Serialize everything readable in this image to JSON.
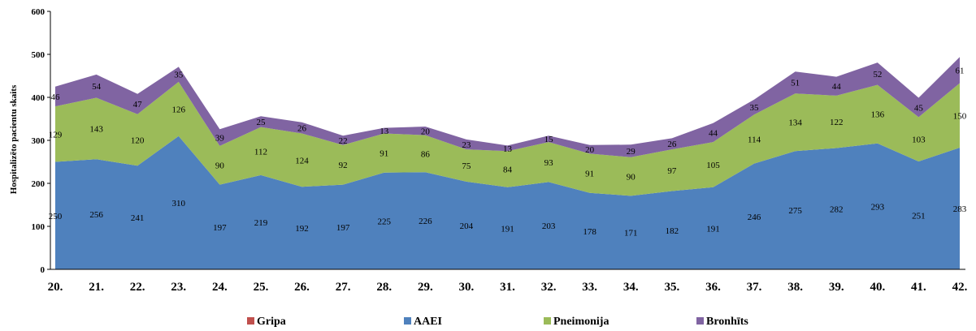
{
  "chart_data": {
    "type": "area",
    "stacked": true,
    "title": "",
    "xlabel": "",
    "ylabel": "Hospitalizēto pacientu skaits",
    "ylim": [
      0,
      600
    ],
    "yticks": [
      0,
      100,
      200,
      300,
      400,
      500,
      600
    ],
    "grid": false,
    "legend_position": "bottom",
    "categories": [
      "20.",
      "21.",
      "22.",
      "23.",
      "24.",
      "25.",
      "26.",
      "27.",
      "28.",
      "29.",
      "30.",
      "31.",
      "32.",
      "33.",
      "34.",
      "35.",
      "36.",
      "37.",
      "38.",
      "39.",
      "40.",
      "41.",
      "42."
    ],
    "series": [
      {
        "name": "Gripa",
        "color": "#c0504d",
        "values": [
          0,
          0,
          0,
          0,
          0,
          0,
          0,
          0,
          0,
          0,
          0,
          0,
          0,
          0,
          0,
          0,
          0,
          0,
          0,
          0,
          0,
          0,
          0
        ],
        "show_labels": false
      },
      {
        "name": "AAEI",
        "color": "#4f81bd",
        "values": [
          250,
          256,
          241,
          310,
          197,
          219,
          192,
          197,
          225,
          226,
          204,
          191,
          203,
          178,
          171,
          182,
          191,
          246,
          275,
          282,
          293,
          251,
          283
        ],
        "show_labels": true
      },
      {
        "name": "Pneimonija",
        "color": "#9bbb59",
        "values": [
          129,
          143,
          120,
          126,
          90,
          112,
          124,
          92,
          91,
          86,
          75,
          84,
          93,
          91,
          90,
          97,
          105,
          114,
          134,
          122,
          136,
          103,
          150
        ],
        "show_labels": true
      },
      {
        "name": "Bronhīts",
        "color": "#8064a2",
        "values": [
          46,
          54,
          47,
          35,
          39,
          25,
          26,
          22,
          13,
          20,
          23,
          13,
          15,
          20,
          29,
          26,
          44,
          35,
          51,
          44,
          52,
          45,
          61
        ],
        "show_labels": true
      }
    ]
  }
}
